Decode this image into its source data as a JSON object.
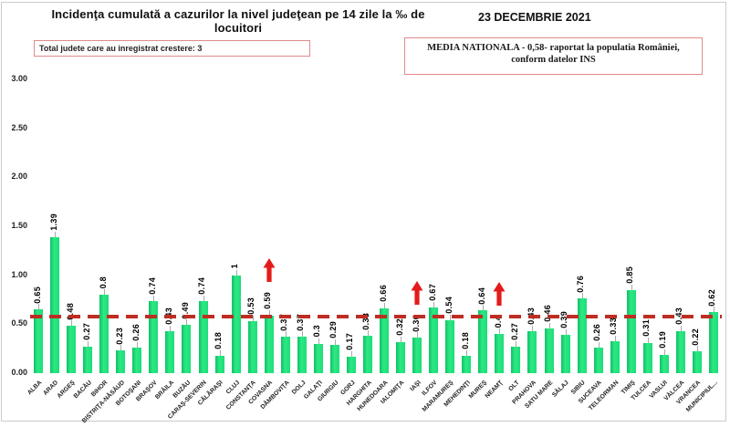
{
  "header": {
    "title": "Incidenţa cumulată a cazurilor la nivel judeţean pe 14 zile la ‰ de locuitori",
    "date": "23 DECEMBRIE 2021"
  },
  "notes": {
    "growth": "Total judete care au inregistrat crestere: 3",
    "national_average": "MEDIA NATIONALA - 0,58-  raportat la populatia  României,\nconform datelor INS"
  },
  "colors": {
    "bar_green": "#1edc78",
    "reference_line_red": "#be2d23",
    "arrow_red": "#e41b1b",
    "note_border": "#e08a8a"
  },
  "chart_data": {
    "type": "bar",
    "title": "Incidenţa cumulată a cazurilor la nivel judeţean pe 14 zile la ‰ de locuitori",
    "xlabel": "",
    "ylabel": "",
    "grid": false,
    "legend": false,
    "ylim": [
      0,
      3
    ],
    "yticks": [
      {
        "label": "3.00",
        "value": 3
      },
      {
        "label": "2.50",
        "value": 2.5
      },
      {
        "label": "2.00",
        "value": 2
      },
      {
        "label": "1.50",
        "value": 1.5
      },
      {
        "label": "1.00",
        "value": 1
      },
      {
        "label": "0.50",
        "value": 0.5
      },
      {
        "label": "0.00",
        "value": 0
      }
    ],
    "reference_line": {
      "value": 0.58,
      "meaning": "media nationala"
    },
    "categories": [
      "ALBA",
      "ARAD",
      "ARGEŞ",
      "BACĂU",
      "BIHOR",
      "BISTRIŢA-NĂSĂUD",
      "BOTOŞANI",
      "BRAŞOV",
      "BRĂILA",
      "BUZĂU",
      "CARAŞ-SEVERIN",
      "CĂLĂRAŞI",
      "CLUJ",
      "CONSTANŢA",
      "COVASNA",
      "DÂMBOVIŢA",
      "DOLJ",
      "GALAŢI",
      "GIURGIU",
      "GORJ",
      "HARGHITA",
      "HUNEDOARA",
      "IALOMIŢA",
      "IAŞI",
      "ILFOV",
      "MARAMUREŞ",
      "MEHEDINŢI",
      "MUREŞ",
      "NEAMŢ",
      "OLT",
      "PRAHOVA",
      "SATU MARE",
      "SĂLAJ",
      "SIBIU",
      "SUCEAVA",
      "TELEORMAN",
      "TIMIŞ",
      "TULCEA",
      "VASLUI",
      "VÂLCEA",
      "VRANCEA",
      "MUNICIPIUL..."
    ],
    "values": [
      0.65,
      1.39,
      0.48,
      0.27,
      0.8,
      0.23,
      0.26,
      0.74,
      0.43,
      0.49,
      0.74,
      0.18,
      1,
      0.53,
      0.59,
      0.37,
      0.37,
      0.3,
      0.29,
      0.17,
      0.38,
      0.66,
      0.32,
      0.36,
      0.67,
      0.54,
      0.18,
      0.64,
      0.4,
      0.27,
      0.43,
      0.46,
      0.39,
      0.76,
      0.26,
      0.33,
      0.85,
      0.31,
      0.19,
      0.43,
      0.22,
      0.62
    ],
    "value_labels": [
      "0.65",
      "1.39",
      "0.48",
      "0.27",
      "0.8",
      "0.23",
      "0.26",
      "0.74",
      "0.43",
      "0.49",
      "0.74",
      "0.18",
      "1",
      "0.53",
      "0.59",
      "0.37",
      "0.37",
      "0.3",
      "0.29",
      "0.17",
      "0.38",
      "0.66",
      "0.32",
      "0.36",
      "0.67",
      "0.54",
      "0.18",
      "0.64",
      "0.4",
      "0.27",
      "0.43",
      "0.46",
      "0.39",
      "0.76",
      "0.26",
      "0.33",
      "0.85",
      "0.31",
      "0.19",
      "0.43",
      "0.22",
      "0.62"
    ],
    "increase_counties": [
      "COVASNA",
      "IAŞI",
      "NEAMŢ"
    ]
  }
}
